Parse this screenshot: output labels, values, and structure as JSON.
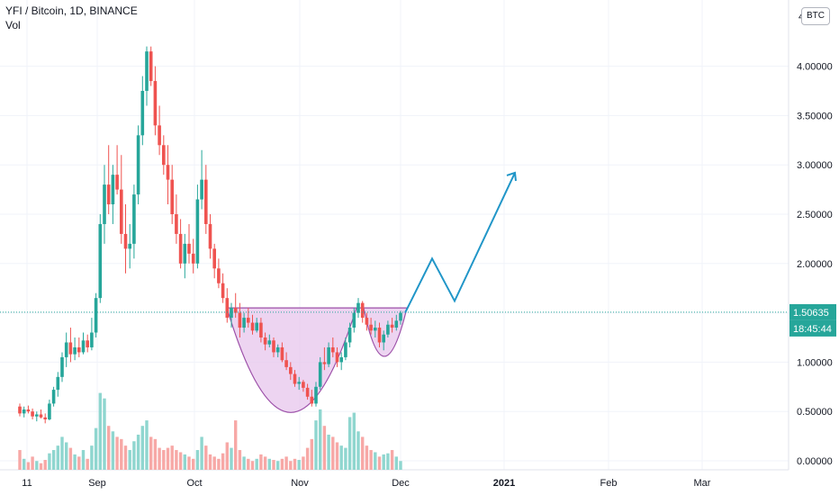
{
  "legend": {
    "symbol": "YFI / Bitcoin, 1D, BINANCE",
    "volume_label": "Vol"
  },
  "currency_badge": "BTC",
  "price_label": "1.50635",
  "countdown_label": "18:45:44",
  "colors": {
    "up": "#26a69a",
    "down": "#ef5350",
    "up_volume": "#8fd6cf",
    "down_volume": "#f7a8a6",
    "cup_fill": "#e7c6ec",
    "cup_stroke": "#9c4fa8",
    "projection": "#2196c8",
    "price_line": "#26a69a",
    "axis_text": "#131722",
    "grid": "#f0f3fa"
  },
  "chart_data": {
    "type": "candlestick",
    "y_axis": {
      "min": 0,
      "max": 4.5,
      "ticks": [
        "0.00000",
        "0.50000",
        "1.00000",
        "1.50000",
        "2.00000",
        "2.50000",
        "3.00000",
        "3.50000",
        "4.00000",
        "4"
      ]
    },
    "x_axis": {
      "ticks": [
        "11",
        "Sep",
        "Oct",
        "Nov",
        "Dec",
        "2021",
        "Feb",
        "Mar"
      ]
    },
    "start_label": "11",
    "candles": [
      [
        0.55,
        0.58,
        0.45,
        0.48
      ],
      [
        0.48,
        0.55,
        0.44,
        0.52
      ],
      [
        0.52,
        0.56,
        0.48,
        0.5
      ],
      [
        0.5,
        0.53,
        0.42,
        0.45
      ],
      [
        0.45,
        0.5,
        0.4,
        0.47
      ],
      [
        0.47,
        0.52,
        0.43,
        0.44
      ],
      [
        0.44,
        0.48,
        0.38,
        0.42
      ],
      [
        0.42,
        0.62,
        0.41,
        0.58
      ],
      [
        0.58,
        0.75,
        0.55,
        0.72
      ],
      [
        0.72,
        0.9,
        0.65,
        0.85
      ],
      [
        0.85,
        1.1,
        0.8,
        1.05
      ],
      [
        1.05,
        1.3,
        0.95,
        1.2
      ],
      [
        1.2,
        1.35,
        1.0,
        1.08
      ],
      [
        1.08,
        1.25,
        1.02,
        1.15
      ],
      [
        1.15,
        1.25,
        1.05,
        1.1
      ],
      [
        1.1,
        1.3,
        1.08,
        1.22
      ],
      [
        1.22,
        1.28,
        1.1,
        1.15
      ],
      [
        1.15,
        1.45,
        1.12,
        1.3
      ],
      [
        1.3,
        1.7,
        1.25,
        1.65
      ],
      [
        1.65,
        2.5,
        1.6,
        2.4
      ],
      [
        2.4,
        3.0,
        2.2,
        2.8
      ],
      [
        2.8,
        3.2,
        2.5,
        2.6
      ],
      [
        2.6,
        3.0,
        2.4,
        2.9
      ],
      [
        2.9,
        3.2,
        2.7,
        2.75
      ],
      [
        2.75,
        3.1,
        2.2,
        2.3
      ],
      [
        2.3,
        2.6,
        1.9,
        2.15
      ],
      [
        2.15,
        2.4,
        1.95,
        2.2
      ],
      [
        2.2,
        2.8,
        2.05,
        2.7
      ],
      [
        2.7,
        3.4,
        2.6,
        3.3
      ],
      [
        3.3,
        3.9,
        3.2,
        3.75
      ],
      [
        3.75,
        4.2,
        3.6,
        4.15
      ],
      [
        4.15,
        4.2,
        3.8,
        3.85
      ],
      [
        3.85,
        4.0,
        3.3,
        3.4
      ],
      [
        3.4,
        3.6,
        3.1,
        3.2
      ],
      [
        3.2,
        3.3,
        2.9,
        3.0
      ],
      [
        3.0,
        3.2,
        2.6,
        2.85
      ],
      [
        2.85,
        3.0,
        2.4,
        2.5
      ],
      [
        2.5,
        2.7,
        2.2,
        2.3
      ],
      [
        2.3,
        2.45,
        1.95,
        2.0
      ],
      [
        2.0,
        2.3,
        1.85,
        2.2
      ],
      [
        2.2,
        2.4,
        2.0,
        2.1
      ],
      [
        2.1,
        2.25,
        1.9,
        2.0
      ],
      [
        2.0,
        2.8,
        1.95,
        2.65
      ],
      [
        2.65,
        3.15,
        2.55,
        2.85
      ],
      [
        2.85,
        3.0,
        2.3,
        2.4
      ],
      [
        2.4,
        2.5,
        2.05,
        2.15
      ],
      [
        2.15,
        2.2,
        1.85,
        1.95
      ],
      [
        1.95,
        2.05,
        1.75,
        1.8
      ],
      [
        1.8,
        1.9,
        1.6,
        1.65
      ],
      [
        1.65,
        1.75,
        1.4,
        1.45
      ],
      [
        1.45,
        1.6,
        1.35,
        1.55
      ],
      [
        1.55,
        1.7,
        1.45,
        1.5
      ],
      [
        1.5,
        1.6,
        1.25,
        1.35
      ],
      [
        1.35,
        1.5,
        1.3,
        1.45
      ],
      [
        1.45,
        1.55,
        1.35,
        1.4
      ],
      [
        1.4,
        1.48,
        1.28,
        1.32
      ],
      [
        1.32,
        1.45,
        1.3,
        1.4
      ],
      [
        1.4,
        1.45,
        1.2,
        1.25
      ],
      [
        1.25,
        1.3,
        1.12,
        1.18
      ],
      [
        1.18,
        1.28,
        1.15,
        1.22
      ],
      [
        1.22,
        1.25,
        1.05,
        1.1
      ],
      [
        1.1,
        1.18,
        1.05,
        1.15
      ],
      [
        1.15,
        1.2,
        1.0,
        1.02
      ],
      [
        1.02,
        1.1,
        0.92,
        0.95
      ],
      [
        0.95,
        1.0,
        0.82,
        0.88
      ],
      [
        0.88,
        0.92,
        0.75,
        0.78
      ],
      [
        0.78,
        0.85,
        0.72,
        0.8
      ],
      [
        0.8,
        0.82,
        0.7,
        0.74
      ],
      [
        0.74,
        0.78,
        0.62,
        0.65
      ],
      [
        0.65,
        0.72,
        0.55,
        0.58
      ],
      [
        0.58,
        0.8,
        0.55,
        0.75
      ],
      [
        0.75,
        1.05,
        0.72,
        1.0
      ],
      [
        1.0,
        1.15,
        0.92,
        0.98
      ],
      [
        0.98,
        1.2,
        0.95,
        1.15
      ],
      [
        1.15,
        1.25,
        1.05,
        1.1
      ],
      [
        1.1,
        1.15,
        0.95,
        1.0
      ],
      [
        1.0,
        1.1,
        0.92,
        1.05
      ],
      [
        1.05,
        1.25,
        1.02,
        1.2
      ],
      [
        1.2,
        1.4,
        1.15,
        1.35
      ],
      [
        1.35,
        1.55,
        1.3,
        1.5
      ],
      [
        1.5,
        1.65,
        1.45,
        1.6
      ],
      [
        1.6,
        1.62,
        1.4,
        1.45
      ],
      [
        1.45,
        1.5,
        1.32,
        1.38
      ],
      [
        1.38,
        1.45,
        1.28,
        1.32
      ],
      [
        1.32,
        1.42,
        1.25,
        1.35
      ],
      [
        1.35,
        1.4,
        1.15,
        1.2
      ],
      [
        1.2,
        1.32,
        1.12,
        1.28
      ],
      [
        1.28,
        1.42,
        1.25,
        1.38
      ],
      [
        1.38,
        1.45,
        1.3,
        1.35
      ],
      [
        1.35,
        1.48,
        1.32,
        1.42
      ],
      [
        1.42,
        1.52,
        1.38,
        1.5
      ]
    ],
    "volumes": [
      0.18,
      0.1,
      0.07,
      0.12,
      0.08,
      0.06,
      0.09,
      0.15,
      0.18,
      0.22,
      0.3,
      0.25,
      0.2,
      0.14,
      0.12,
      0.18,
      0.1,
      0.22,
      0.38,
      0.7,
      0.65,
      0.4,
      0.35,
      0.3,
      0.28,
      0.22,
      0.18,
      0.26,
      0.32,
      0.4,
      0.45,
      0.3,
      0.28,
      0.2,
      0.18,
      0.2,
      0.22,
      0.18,
      0.16,
      0.14,
      0.12,
      0.1,
      0.18,
      0.3,
      0.22,
      0.14,
      0.12,
      0.1,
      0.15,
      0.25,
      0.2,
      0.45,
      0.18,
      0.12,
      0.1,
      0.08,
      0.1,
      0.14,
      0.12,
      0.1,
      0.09,
      0.08,
      0.1,
      0.12,
      0.08,
      0.1,
      0.09,
      0.12,
      0.2,
      0.28,
      0.45,
      0.55,
      0.4,
      0.32,
      0.3,
      0.25,
      0.22,
      0.2,
      0.48,
      0.52,
      0.35,
      0.3,
      0.22,
      0.18,
      0.16,
      0.12,
      0.14,
      0.15,
      0.18,
      0.12,
      0.08
    ],
    "cup_bottom": 0.49,
    "cup_rim": 1.55,
    "handle_bottom": 1.15,
    "projection_path": [
      [
        1.5
      ],
      [
        2.05
      ],
      [
        1.62
      ],
      [
        2.92
      ]
    ],
    "current_price": 1.50635
  }
}
